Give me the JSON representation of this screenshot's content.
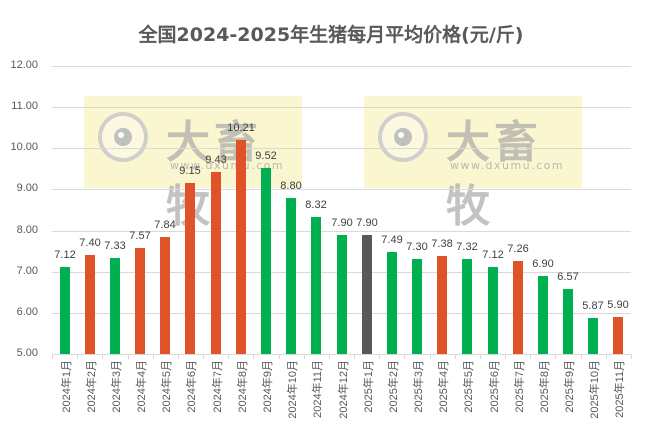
{
  "title": "全国2024-2025年生猪每月平均价格(元/斤)",
  "watermark": {
    "text": "大畜牧",
    "url": "www.dxumu.com",
    "icon": "eye-logo-icon"
  },
  "colors": {
    "green": "#00b050",
    "orange": "#e05227",
    "gray": "#595959",
    "grid": "#d9d9d9",
    "watermark_bg": "#f6eeaa"
  },
  "y_axis": {
    "ticks": [
      "12.00",
      "11.00",
      "10.00",
      "9.00",
      "8.00",
      "7.00",
      "6.00",
      "5.00"
    ]
  },
  "chart_data": {
    "type": "bar",
    "title": "全国2024-2025年生猪每月平均价格(元/斤)",
    "xlabel": "",
    "ylabel": "",
    "ylim": [
      5,
      12
    ],
    "grid": true,
    "legend": "none",
    "categories": [
      "2024年1月",
      "2024年2月",
      "2024年3月",
      "2024年4月",
      "2024年5月",
      "2024年6月",
      "2024年7月",
      "2024年8月",
      "2024年9月",
      "2024年10月",
      "2024年11月",
      "2024年12月",
      "2025年1月",
      "2025年2月",
      "2025年3月",
      "2025年4月",
      "2025年5月",
      "2025年6月",
      "2025年7月",
      "2025年8月",
      "2025年9月",
      "2025年10月",
      "2025年11月"
    ],
    "values": [
      7.12,
      7.4,
      7.33,
      7.57,
      7.84,
      9.15,
      9.43,
      10.21,
      9.52,
      8.8,
      8.32,
      7.9,
      7.9,
      7.49,
      7.3,
      7.38,
      7.32,
      7.12,
      7.26,
      6.9,
      6.57,
      5.87,
      5.9
    ],
    "labels": [
      "7.12",
      "7.40",
      "7.33",
      "7.57",
      "7.84",
      "9.15",
      "9.43",
      "10.21",
      "9.52",
      "8.80",
      "8.32",
      "7.90",
      "7.90",
      "7.49",
      "7.30",
      "7.38",
      "7.32",
      "7.12",
      "7.26",
      "6.90",
      "6.57",
      "5.87",
      "5.90"
    ],
    "bar_colors": [
      "green",
      "orange",
      "green",
      "orange",
      "orange",
      "orange",
      "orange",
      "orange",
      "green",
      "green",
      "green",
      "green",
      "gray",
      "green",
      "green",
      "orange",
      "green",
      "green",
      "orange",
      "green",
      "green",
      "green",
      "orange"
    ]
  }
}
